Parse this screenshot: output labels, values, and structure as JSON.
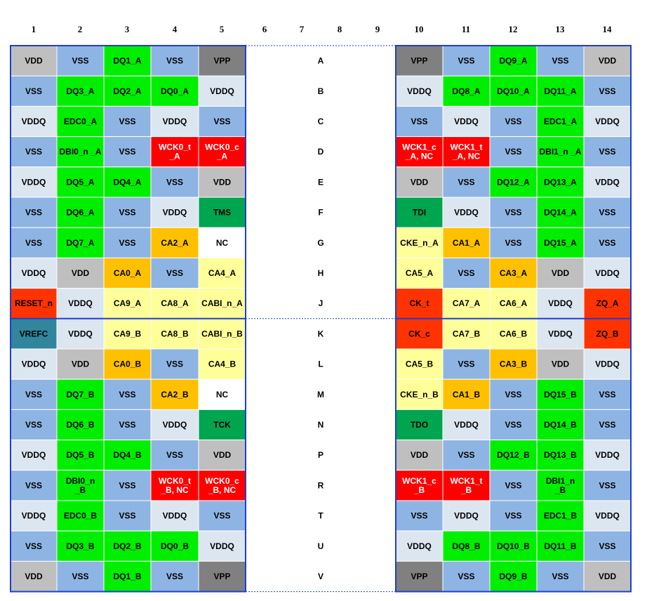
{
  "columns": [
    "1",
    "2",
    "3",
    "4",
    "5",
    "6",
    "7",
    "8",
    "9",
    "10",
    "11",
    "12",
    "13",
    "14"
  ],
  "colors": {
    "VSS": "#8eb4e3",
    "VDDQ": "#dce6f1",
    "VDD": "#bfbfbf",
    "VPP": "#808080",
    "DQ": "#00ee00",
    "EDC": "#00ee00",
    "DBI": "#00ee00",
    "WCK": "#ff0000",
    "CA": "#ffff99",
    "CA_ALT": "#ffc000",
    "JTAG": "#00a550",
    "NC": "#ffffff",
    "RESET": "#ff3300",
    "ZQ": "#ff3300",
    "CK": "#ff3300",
    "VREFC": "#31859c",
    "border": "#1f3fcc"
  },
  "rows": [
    {
      "row": "A",
      "left": [
        "VDD",
        "VSS",
        "DQ1_A",
        "VSS",
        "VPP"
      ],
      "right": [
        "VPP",
        "VSS",
        "DQ9_A",
        "VSS",
        "VDD"
      ]
    },
    {
      "row": "B",
      "left": [
        "VSS",
        "DQ3_A",
        "DQ2_A",
        "DQ0_A",
        "VDDQ"
      ],
      "right": [
        "VDDQ",
        "DQ8_A",
        "DQ10_A",
        "DQ11_A",
        "VSS"
      ]
    },
    {
      "row": "C",
      "left": [
        "VDDQ",
        "EDC0_A",
        "VSS",
        "VDDQ",
        "VSS"
      ],
      "right": [
        "VSS",
        "VDDQ",
        "VSS",
        "EDC1_A",
        "VDDQ"
      ]
    },
    {
      "row": "D",
      "left": [
        "VSS",
        "DBI0_n _A",
        "VSS",
        "WCK0_t\n_A",
        "WCK0_c\n_A"
      ],
      "right": [
        "WCK1_c\n_A, NC",
        "WCK1_t\n_A, NC",
        "VSS",
        "DBI1_n _A",
        "VSS"
      ]
    },
    {
      "row": "E",
      "left": [
        "VDDQ",
        "DQ5_A",
        "DQ4_A",
        "VSS",
        "VDD"
      ],
      "right": [
        "VDD",
        "VSS",
        "DQ12_A",
        "DQ13_A",
        "VDDQ"
      ]
    },
    {
      "row": "F",
      "left": [
        "VSS",
        "DQ6_A",
        "VSS",
        "VDDQ",
        "TMS"
      ],
      "right": [
        "TDI",
        "VDDQ",
        "VSS",
        "DQ14_A",
        "VSS"
      ]
    },
    {
      "row": "G",
      "left": [
        "VSS",
        "DQ7_A",
        "VSS",
        "CA2_A",
        "NC"
      ],
      "right": [
        "CKE_n_A",
        "CA1_A",
        "VSS",
        "DQ15_A",
        "VSS"
      ]
    },
    {
      "row": "H",
      "left": [
        "VDDQ",
        "VDD",
        "CA0_A",
        "VSS",
        "CA4_A"
      ],
      "right": [
        "CA5_A",
        "VSS",
        "CA3_A",
        "VDD",
        "VDDQ"
      ]
    },
    {
      "row": "J",
      "left": [
        "RESET_n",
        "VDDQ",
        "CA9_A",
        "CA8_A",
        "CABI_n_A"
      ],
      "right": [
        "CK_t",
        "CA7_A",
        "CA6_A",
        "VDDQ",
        "ZQ_A"
      ]
    },
    {
      "row": "K",
      "left": [
        "VREFC",
        "VDDQ",
        "CA9_B",
        "CA8_B",
        "CABI_n_B"
      ],
      "right": [
        "CK_c",
        "CA7_B",
        "CA6_B",
        "VDDQ",
        "ZQ_B"
      ]
    },
    {
      "row": "L",
      "left": [
        "VDDQ",
        "VDD",
        "CA0_B",
        "VSS",
        "CA4_B"
      ],
      "right": [
        "CA5_B",
        "VSS",
        "CA3_B",
        "VDD",
        "VDDQ"
      ]
    },
    {
      "row": "M",
      "left": [
        "VSS",
        "DQ7_B",
        "VSS",
        "CA2_B",
        "NC"
      ],
      "right": [
        "CKE_n_B",
        "CA1_B",
        "VSS",
        "DQ15_B",
        "VSS"
      ]
    },
    {
      "row": "N",
      "left": [
        "VSS",
        "DQ6_B",
        "VSS",
        "VDDQ",
        "TCK"
      ],
      "right": [
        "TDO",
        "VDDQ",
        "VSS",
        "DQ14_B",
        "VSS"
      ]
    },
    {
      "row": "P",
      "left": [
        "VDDQ",
        "DQ5_B",
        "DQ4_B",
        "VSS",
        "VDD"
      ],
      "right": [
        "VDD",
        "VSS",
        "DQ12_B",
        "DQ13_B",
        "VDDQ"
      ]
    },
    {
      "row": "R",
      "left": [
        "VSS",
        "DBI0_n\n_B",
        "VSS",
        "WCK0_t\n_B, NC",
        "WCK0_c\n_B, NC"
      ],
      "right": [
        "WCK1_c\n_B",
        "WCK1_t\n_B",
        "VSS",
        "DBI1_n\n_B",
        "VSS"
      ]
    },
    {
      "row": "T",
      "left": [
        "VDDQ",
        "EDC0_B",
        "VSS",
        "VDDQ",
        "VSS"
      ],
      "right": [
        "VSS",
        "VDDQ",
        "VSS",
        "EDC1_B",
        "VDDQ"
      ]
    },
    {
      "row": "U",
      "left": [
        "VSS",
        "DQ3_B",
        "DQ2_B",
        "DQ0_B",
        "VDDQ"
      ],
      "right": [
        "VDDQ",
        "DQ8_B",
        "DQ10_B",
        "DQ11_B",
        "VSS"
      ]
    },
    {
      "row": "V",
      "left": [
        "VDD",
        "VSS",
        "DQ1_B",
        "VSS",
        "VPP"
      ],
      "right": [
        "VPP",
        "VSS",
        "DQ9_B",
        "VSS",
        "VDD"
      ]
    }
  ],
  "cell_colors": {
    "CA2_A": "CA_ALT",
    "CA0_A": "CA_ALT",
    "CA3_A": "CA_ALT",
    "CA1_A": "CA_ALT",
    "CA2_B": "CA_ALT",
    "CA0_B": "CA_ALT",
    "CA3_B": "CA_ALT",
    "CA1_B": "CA_ALT"
  }
}
